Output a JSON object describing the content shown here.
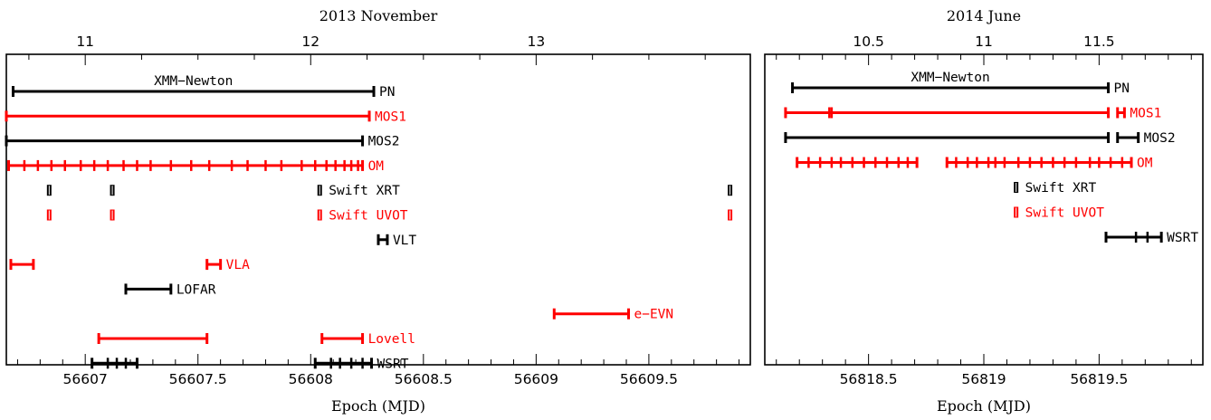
{
  "chart_data": [
    {
      "type": "timeline",
      "title": "2013 November",
      "xlabel": "Epoch (MJD)",
      "xlim": [
        56606.65,
        56609.95
      ],
      "bottom_ticks": [
        "56607",
        "56607.5",
        "56608",
        "56608.5",
        "56609",
        "56609.5"
      ],
      "bottom_tick_values": [
        56607,
        56607.5,
        56608,
        56608.5,
        56609,
        56609.5
      ],
      "top_ticks": [
        "11",
        "12",
        "13"
      ],
      "top_tick_values": [
        56607.0,
        56608.0,
        56609.0
      ],
      "rows": [
        {
          "label": "PN",
          "color": "#000000",
          "style": "span",
          "start": 56606.68,
          "end": 56608.28,
          "annotation": "XMM−Newton"
        },
        {
          "label": "MOS1",
          "color": "#ff0000",
          "style": "span",
          "start": 56606.65,
          "end": 56608.26
        },
        {
          "label": "MOS2",
          "color": "#000000",
          "style": "span",
          "start": 56606.65,
          "end": 56608.23
        },
        {
          "label": "OM",
          "color": "#ff0000",
          "style": "span",
          "start": 56606.66,
          "end": 56608.23,
          "ticks": [
            56606.73,
            56606.79,
            56606.85,
            56606.91,
            56606.98,
            56607.04,
            56607.1,
            56607.17,
            56607.23,
            56607.29,
            56607.38,
            56607.47,
            56607.55,
            56607.65,
            56607.72,
            56607.8,
            56607.87,
            56607.96,
            56608.02,
            56608.07,
            56608.11,
            56608.15,
            56608.18,
            56608.21
          ]
        },
        {
          "label": "Swift XRT",
          "color": "#000000",
          "style": "marks",
          "times": [
            56606.84,
            56607.12,
            56608.04,
            56609.86
          ]
        },
        {
          "label": "Swift UVOT",
          "color": "#ff0000",
          "style": "marks",
          "times": [
            56606.84,
            56607.12,
            56608.04,
            56609.86
          ]
        },
        {
          "label": "VLT",
          "color": "#000000",
          "style": "span",
          "start": 56608.3,
          "end": 56608.34
        },
        {
          "label": "VLA",
          "color": "#ff0000",
          "style": "multi",
          "segments": [
            [
              56606.67,
              56606.77
            ],
            [
              56607.54,
              56607.6
            ]
          ],
          "label_after": 56607.6
        },
        {
          "label": "LOFAR",
          "color": "#000000",
          "style": "span",
          "start": 56607.18,
          "end": 56607.38
        },
        {
          "label": "e−EVN",
          "color": "#ff0000",
          "style": "span",
          "start": 56609.08,
          "end": 56609.41
        },
        {
          "label": "Lovell",
          "color": "#ff0000",
          "style": "multi",
          "segments": [
            [
              56607.06,
              56607.54
            ],
            [
              56608.05,
              56608.23
            ]
          ],
          "label_after": 56608.23
        },
        {
          "label": "WSRT",
          "color": "#000000",
          "style": "multi",
          "segments": [
            [
              56607.03,
              56607.23
            ],
            [
              56608.02,
              56608.27
            ]
          ],
          "ticks": [
            56607.1,
            56607.14,
            56607.18,
            56608.09,
            56608.13,
            56608.18,
            56608.23
          ],
          "label_after": 56608.27
        }
      ]
    },
    {
      "type": "timeline",
      "title": "2014 June",
      "xlabel": "Epoch (MJD)",
      "xlim": [
        56818.05,
        56819.95
      ],
      "bottom_ticks": [
        "56818.5",
        "56819",
        "56819.5"
      ],
      "bottom_tick_values": [
        56818.5,
        56819,
        56819.5
      ],
      "top_ticks": [
        "10.5",
        "11",
        "11.5"
      ],
      "top_tick_values": [
        56818.5,
        56819.0,
        56819.5
      ],
      "rows": [
        {
          "label": "PN",
          "color": "#000000",
          "style": "span",
          "start": 56818.17,
          "end": 56819.54,
          "annotation": "XMM−Newton"
        },
        {
          "label": "MOS1",
          "color": "#ff0000",
          "style": "multi",
          "segments": [
            [
              56818.14,
              56819.54
            ],
            [
              56819.58,
              56819.61
            ]
          ],
          "ticks": [
            56818.33,
            56818.34
          ],
          "label_after": 56819.61
        },
        {
          "label": "MOS2",
          "color": "#000000",
          "style": "multi",
          "segments": [
            [
              56818.14,
              56819.54
            ],
            [
              56819.58,
              56819.67
            ]
          ],
          "label_after": 56819.67
        },
        {
          "label": "OM",
          "color": "#ff0000",
          "style": "multi",
          "segments": [
            [
              56818.19,
              56818.71
            ],
            [
              56818.84,
              56819.64
            ]
          ],
          "ticks": [
            56818.24,
            56818.29,
            56818.34,
            56818.38,
            56818.43,
            56818.48,
            56818.53,
            56818.58,
            56818.63,
            56818.67,
            56818.88,
            56818.93,
            56818.97,
            56819.02,
            56819.05,
            56819.09,
            56819.15,
            56819.2,
            56819.25,
            56819.3,
            56819.35,
            56819.4,
            56819.46,
            56819.5,
            56819.55,
            56819.6
          ],
          "label_after": 56819.64
        },
        {
          "label": "Swift XRT",
          "color": "#000000",
          "style": "marks",
          "times": [
            56819.14
          ]
        },
        {
          "label": "Swift UVOT",
          "color": "#ff0000",
          "style": "marks",
          "times": [
            56819.14
          ]
        },
        {
          "label": "WSRT",
          "color": "#000000",
          "style": "span",
          "start": 56819.53,
          "end": 56819.77,
          "ticks": [
            56819.66,
            56819.71
          ]
        }
      ]
    }
  ]
}
